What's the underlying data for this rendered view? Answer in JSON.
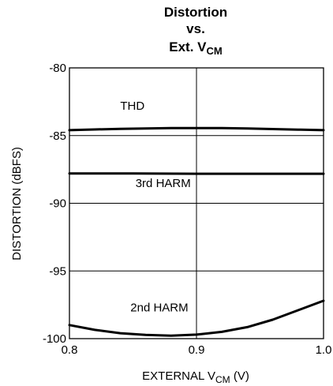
{
  "chart_data": {
    "type": "line",
    "title_lines": [
      "Distortion",
      "vs.",
      "Ext. V"
    ],
    "title_sub": "CM",
    "xlabel_main": "EXTERNAL V",
    "xlabel_sub": "CM",
    "xlabel_unit": " (V)",
    "ylabel": "DISTORTION (dBFS)",
    "xlim": [
      0.8,
      1.0
    ],
    "ylim": [
      -100,
      -80
    ],
    "x_ticks": [
      0.8,
      0.9,
      1.0
    ],
    "x_tick_labels": [
      "0.8",
      "0.9",
      "1.0"
    ],
    "y_ticks": [
      -80,
      -85,
      -90,
      -95,
      -100
    ],
    "y_tick_labels": [
      "-80",
      "-85",
      "-90",
      "-95",
      "-100"
    ],
    "grid": true,
    "series": [
      {
        "name": "THD",
        "x": [
          0.8,
          0.82,
          0.84,
          0.86,
          0.88,
          0.9,
          0.92,
          0.94,
          0.96,
          0.98,
          1.0
        ],
        "y": [
          -84.6,
          -84.55,
          -84.5,
          -84.47,
          -84.45,
          -84.45,
          -84.45,
          -84.48,
          -84.52,
          -84.56,
          -84.6
        ]
      },
      {
        "name": "3rd HARM",
        "x": [
          0.8,
          0.85,
          0.9,
          0.95,
          1.0
        ],
        "y": [
          -87.8,
          -87.8,
          -87.82,
          -87.82,
          -87.82
        ]
      },
      {
        "name": "2nd HARM",
        "x": [
          0.8,
          0.82,
          0.84,
          0.86,
          0.88,
          0.9,
          0.92,
          0.94,
          0.96,
          0.98,
          1.0
        ],
        "y": [
          -99.0,
          -99.35,
          -99.6,
          -99.72,
          -99.78,
          -99.7,
          -99.5,
          -99.15,
          -98.6,
          -97.9,
          -97.2
        ]
      }
    ],
    "annotations": [
      {
        "text": "THD",
        "x": 0.84,
        "y": -83.1
      },
      {
        "text": "3rd HARM",
        "x": 0.852,
        "y": -88.8
      },
      {
        "text": "2nd HARM",
        "x": 0.848,
        "y": -98.0
      }
    ]
  }
}
